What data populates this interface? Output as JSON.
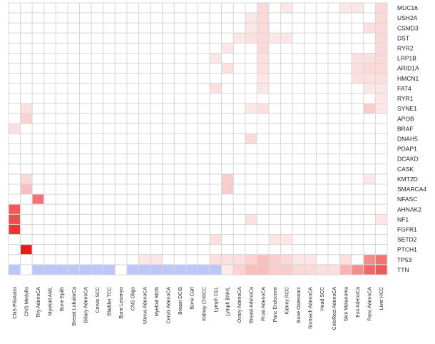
{
  "chart_data": {
    "type": "heatmap",
    "title": "",
    "xlabel": "",
    "ylabel": "",
    "columns": [
      "CNS PiloAstro",
      "CNS Medullo",
      "Thy AdenoCA",
      "Myeloid AML",
      "Bone Epith",
      "Breast LobularCa",
      "Biliary AdenoCA",
      "Cervix SCC",
      "Bladder TCC",
      "Bone Leiomyo",
      "CNS Oligo",
      "Uterus AdenoCA",
      "Myeloid MDS",
      "Cervix AdenoCA",
      "Breast DCIS",
      "Bone Cart",
      "Kidney ChRCC",
      "Lymph CLL",
      "Lymph BNHL",
      "Ovary AdenoCA",
      "Breast AdenoCa",
      "Prost AdenoCA",
      "Panc Endocrine",
      "Kidney RCC",
      "Bone Osteosarc",
      "Stomach AdenoCA",
      "Head SCC",
      "ColoRect AdenoCA",
      "Skin Melanoma",
      "Eso AdenoCa",
      "Panc AdenoCA",
      "Liver HCC"
    ],
    "rows": [
      "MUC16",
      "USH2A",
      "CSMD3",
      "DST",
      "RYR2",
      "LRP1B",
      "ARID1A",
      "HMCN1",
      "FAT4",
      "RYR1",
      "SYNE1",
      "APOB",
      "BRAF",
      "DNAH5",
      "PDAP1",
      "DCAKD",
      "CASK",
      "KMT2D",
      "SMARCA4",
      "NFASC",
      "AHNAK2",
      "NF1",
      "FGFR1",
      "SETD2",
      "PTCH1",
      "TP53",
      "TTN"
    ],
    "values": [
      [
        0,
        0,
        0,
        0,
        0,
        0,
        0,
        0,
        0,
        0,
        0,
        0,
        0,
        0,
        0,
        0,
        0,
        0,
        0,
        0,
        0,
        0.15,
        0,
        0.1,
        0,
        0,
        0,
        0,
        0.1,
        0.1,
        0,
        0.15
      ],
      [
        0,
        0,
        0,
        0,
        0,
        0,
        0,
        0,
        0,
        0,
        0,
        0,
        0,
        0,
        0,
        0,
        0,
        0,
        0,
        0,
        0.1,
        0.15,
        0,
        0,
        0,
        0,
        0,
        0,
        0,
        0,
        0,
        0.15
      ],
      [
        0,
        0,
        0,
        0,
        0,
        0,
        0,
        0,
        0,
        0,
        0,
        0,
        0,
        0,
        0,
        0,
        0,
        0,
        0,
        0,
        0.1,
        0.15,
        0,
        0,
        0,
        0,
        0,
        0,
        0,
        0,
        0.12,
        0.15
      ],
      [
        0,
        0,
        0,
        0,
        0,
        0,
        0,
        0,
        0,
        0,
        0,
        0,
        0,
        0,
        0,
        0,
        0,
        0,
        0,
        0.1,
        0.12,
        0.15,
        0.1,
        0.1,
        0,
        0,
        0,
        0,
        0,
        0,
        0,
        0.15
      ],
      [
        0,
        0,
        0,
        0,
        0,
        0,
        0,
        0,
        0,
        0,
        0,
        0,
        0,
        0,
        0,
        0,
        0,
        0,
        0.1,
        0,
        0,
        0.15,
        0,
        0,
        0,
        0,
        0,
        0,
        0,
        0,
        0,
        0.15
      ],
      [
        0,
        0,
        0,
        0,
        0,
        0,
        0,
        0,
        0,
        0,
        0,
        0,
        0,
        0,
        0,
        0,
        0,
        0.1,
        0,
        0,
        0,
        0.12,
        0,
        0,
        0,
        0,
        0,
        0,
        0,
        0.12,
        0.12,
        0.15
      ],
      [
        0,
        0,
        0,
        0,
        0,
        0,
        0,
        0,
        0,
        0,
        0,
        0,
        0,
        0,
        0,
        0,
        0,
        0,
        0.12,
        0,
        0,
        0.12,
        0,
        0,
        0,
        0,
        0,
        0,
        0,
        0.12,
        0.15,
        0.15
      ],
      [
        0,
        0,
        0,
        0,
        0,
        0,
        0,
        0,
        0,
        0,
        0,
        0,
        0,
        0,
        0,
        0,
        0,
        0,
        0,
        0,
        0,
        0.1,
        0,
        0,
        0,
        0,
        0,
        0,
        0,
        0.12,
        0.12,
        0.12
      ],
      [
        0,
        0,
        0,
        0,
        0,
        0,
        0,
        0,
        0,
        0,
        0,
        0,
        0,
        0,
        0,
        0,
        0,
        0.12,
        0,
        0,
        0,
        0.1,
        0,
        0,
        0,
        0,
        0,
        0,
        0,
        0,
        0.1,
        0.1
      ],
      [
        0,
        0,
        0,
        0,
        0,
        0,
        0,
        0,
        0,
        0,
        0,
        0,
        0,
        0,
        0,
        0,
        0,
        0,
        0,
        0,
        0,
        0,
        0,
        0,
        0,
        0,
        0,
        0,
        0,
        0,
        0,
        0.1
      ],
      [
        0,
        0.12,
        0,
        0,
        0,
        0,
        0,
        0,
        0,
        0,
        0,
        0,
        0,
        0,
        0,
        0,
        0,
        0,
        0,
        0,
        0.1,
        0.12,
        0,
        0,
        0,
        0,
        0,
        0,
        0,
        0,
        0.2,
        0.1
      ],
      [
        0,
        0.18,
        0,
        0,
        0,
        0,
        0,
        0,
        0,
        0,
        0,
        0,
        0,
        0,
        0,
        0,
        0,
        0,
        0,
        0,
        0,
        0,
        0,
        0,
        0,
        0,
        0,
        0,
        0,
        0,
        0,
        0
      ],
      [
        0.12,
        0,
        0,
        0,
        0,
        0,
        0,
        0,
        0,
        0,
        0,
        0,
        0,
        0,
        0,
        0,
        0,
        0,
        0,
        0,
        0,
        0,
        0,
        0,
        0,
        0,
        0,
        0,
        0,
        0,
        0,
        0
      ],
      [
        0,
        0,
        0,
        0,
        0,
        0,
        0,
        0,
        0,
        0,
        0,
        0,
        0,
        0,
        0,
        0,
        0,
        0,
        0,
        0,
        0.15,
        0,
        0,
        0,
        0,
        0,
        0,
        0,
        0,
        0,
        0,
        0
      ],
      [
        0,
        0,
        0,
        0,
        0,
        0,
        0,
        0,
        0,
        0,
        0,
        0,
        0,
        0,
        0,
        0,
        0,
        0,
        0,
        0,
        0,
        0,
        0,
        0,
        0,
        0,
        0,
        0,
        0,
        0,
        0,
        0
      ],
      [
        0,
        0,
        0,
        0,
        0,
        0,
        0,
        0,
        0,
        0,
        0,
        0,
        0,
        0,
        0,
        0,
        0,
        0,
        0,
        0,
        0,
        0,
        0,
        0,
        0,
        0,
        0,
        0,
        0,
        0,
        0,
        0
      ],
      [
        0,
        0,
        0,
        0,
        0,
        0,
        0,
        0,
        0,
        0,
        0,
        0,
        0,
        0,
        0,
        0,
        0,
        0,
        0,
        0,
        0,
        0,
        0,
        0,
        0,
        0,
        0,
        0,
        0,
        0,
        0,
        0
      ],
      [
        0,
        0.15,
        0,
        0,
        0,
        0,
        0,
        0,
        0,
        0,
        0,
        0,
        0,
        0,
        0,
        0,
        0,
        0,
        0.2,
        0,
        0,
        0,
        0,
        0,
        0,
        0,
        0,
        0,
        0,
        0,
        0.1,
        0
      ],
      [
        0,
        0.25,
        0,
        0,
        0,
        0,
        0,
        0,
        0,
        0,
        0,
        0,
        0,
        0,
        0,
        0,
        0,
        0,
        0.2,
        0,
        0,
        0,
        0,
        0,
        0,
        0,
        0,
        0,
        0,
        0,
        0,
        0
      ],
      [
        0,
        0,
        0.55,
        0,
        0,
        0,
        0,
        0,
        0,
        0,
        0,
        0,
        0,
        0,
        0,
        0,
        0,
        0,
        0,
        0,
        0,
        0,
        0,
        0,
        0,
        0,
        0,
        0,
        0,
        0,
        0,
        0
      ],
      [
        0.65,
        0,
        0,
        0,
        0,
        0,
        0,
        0,
        0,
        0,
        0,
        0,
        0,
        0,
        0,
        0,
        0,
        0,
        0,
        0,
        0,
        0,
        0,
        0,
        0,
        0,
        0,
        0,
        0,
        0,
        0,
        0
      ],
      [
        0.7,
        0,
        0,
        0,
        0,
        0,
        0,
        0,
        0,
        0,
        0,
        0,
        0,
        0,
        0,
        0,
        0,
        0,
        0,
        0,
        0.12,
        0,
        0,
        0,
        0,
        0,
        0,
        0,
        0,
        0,
        0,
        0.1
      ],
      [
        0.8,
        0,
        0,
        0,
        0,
        0,
        0,
        0,
        0,
        0,
        0,
        0,
        0,
        0,
        0,
        0,
        0,
        0,
        0,
        0,
        0,
        0,
        0,
        0,
        0,
        0,
        0,
        0,
        0,
        0,
        0,
        0
      ],
      [
        0,
        0,
        0,
        0,
        0,
        0,
        0,
        0,
        0,
        0,
        0,
        0,
        0,
        0,
        0,
        0,
        0,
        0.12,
        0,
        0,
        0,
        0,
        0.1,
        0.1,
        0,
        0,
        0,
        0,
        0,
        0,
        0,
        0
      ],
      [
        0,
        0.9,
        0,
        0,
        0,
        0,
        0,
        0,
        0,
        0,
        0,
        0,
        0,
        0,
        0,
        0,
        0,
        0,
        0,
        0,
        0,
        0,
        0,
        0,
        0,
        0,
        0,
        0,
        0,
        0,
        0,
        0
      ],
      [
        0,
        0,
        0,
        0,
        0,
        0,
        0,
        0,
        0,
        0,
        0,
        0.1,
        0.1,
        0,
        0,
        0,
        0,
        0.12,
        0.12,
        0.12,
        0.18,
        0.25,
        0.2,
        0.15,
        0.1,
        0.1,
        0,
        0,
        0.12,
        0,
        0.45,
        0.55
      ],
      [
        -0.4,
        0,
        -0.4,
        -0.4,
        -0.4,
        -0.4,
        -0.4,
        -0.4,
        -0.4,
        0,
        -0.4,
        -0.4,
        -0.4,
        -0.4,
        -0.4,
        -0.4,
        -0.4,
        -0.4,
        0.08,
        0.18,
        0.25,
        0.25,
        0.2,
        0.2,
        0.15,
        0.15,
        0.12,
        0.12,
        0.3,
        0.45,
        0.6,
        0.65
      ]
    ],
    "legend": "none",
    "colors": {
      "high": "#e80000",
      "low": "#bcc6f8",
      "neutral": "#ffffff",
      "grid": "#d8d8d8"
    }
  }
}
